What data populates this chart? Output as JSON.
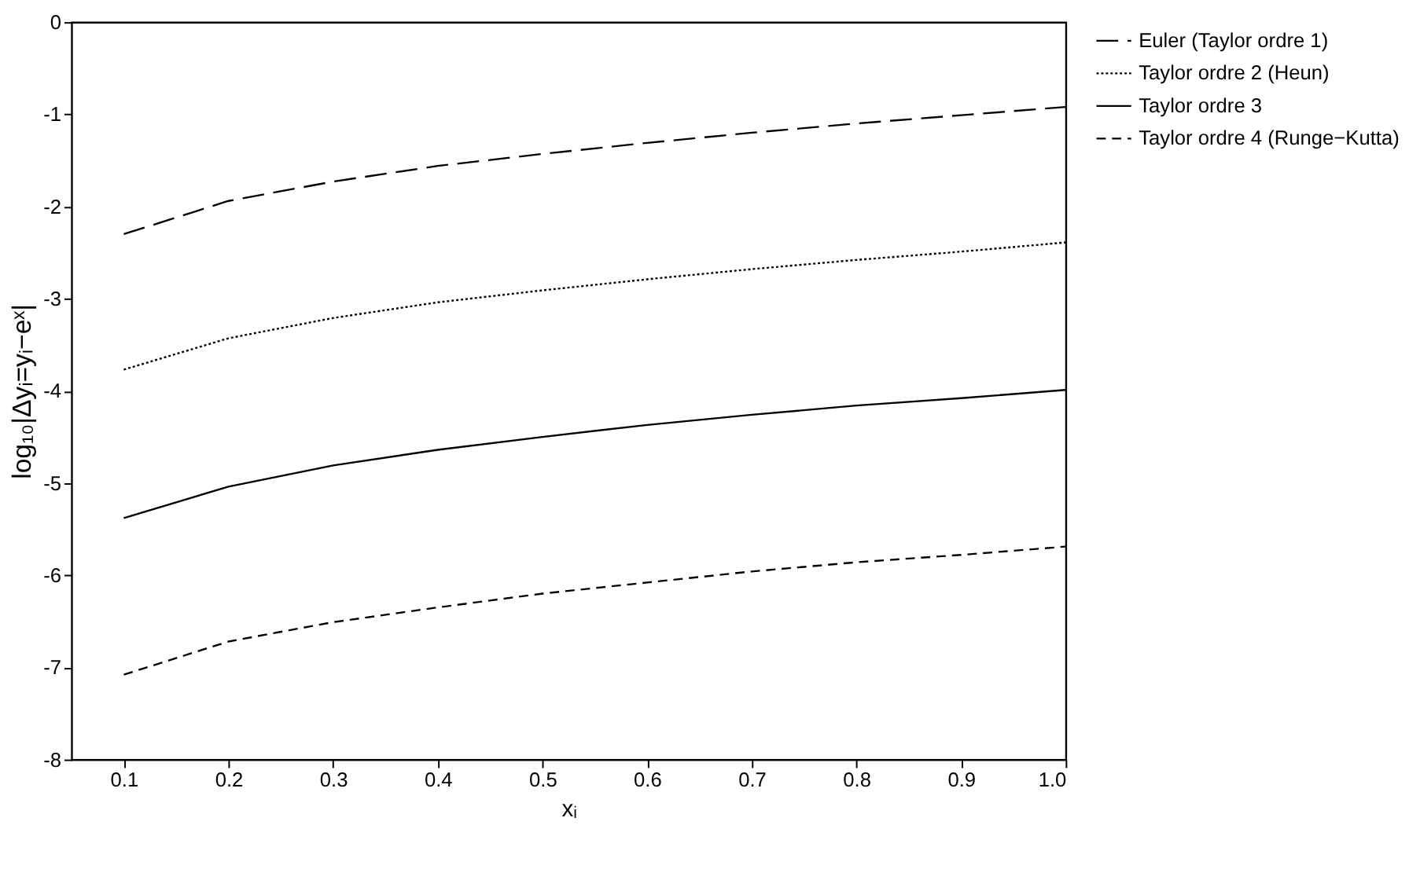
{
  "chart_data": {
    "type": "line",
    "xlabel": "xᵢ",
    "ylabel": "log₁₀|Δyᵢ=yᵢ−eˣ|",
    "x": [
      0.1,
      0.2,
      0.3,
      0.4,
      0.5,
      0.6,
      0.7,
      0.8,
      0.9,
      1.0
    ],
    "series": [
      {
        "name": "Euler (Taylor ordre 1)",
        "color": "#000000",
        "line_style": "dashed",
        "values": [
          -2.3,
          -1.94,
          -1.73,
          -1.56,
          -1.43,
          -1.31,
          -1.2,
          -1.1,
          -1.01,
          -0.92
        ]
      },
      {
        "name": "Taylor ordre 2 (Heun)",
        "color": "#000000",
        "line_style": "dotted",
        "values": [
          -3.77,
          -3.43,
          -3.21,
          -3.04,
          -2.91,
          -2.79,
          -2.68,
          -2.58,
          -2.49,
          -2.39
        ]
      },
      {
        "name": "Taylor ordre 3",
        "color": "#000000",
        "line_style": "solid",
        "values": [
          -5.38,
          -5.04,
          -4.81,
          -4.64,
          -4.5,
          -4.37,
          -4.26,
          -4.16,
          -4.08,
          -3.99
        ]
      },
      {
        "name": "Taylor ordre 4 (Runge−Kutta)",
        "color": "#000000",
        "line_style": "dashed",
        "values": [
          -7.08,
          -6.72,
          -6.51,
          -6.35,
          -6.2,
          -6.08,
          -5.96,
          -5.86,
          -5.78,
          -5.69
        ]
      }
    ],
    "xlim": [
      0.05,
      1.0
    ],
    "xticks": [
      0.1,
      0.2,
      0.3,
      0.4,
      0.5,
      0.6,
      0.7,
      0.8,
      0.9,
      {
        "value": 1.0,
        "label": "1.0"
      }
    ],
    "ylim": [
      -8,
      0
    ],
    "yticks": [
      -8,
      -7,
      -6,
      -5,
      -4,
      -3,
      -2,
      -1,
      0
    ],
    "grid": false,
    "legend": "right",
    "marker": "none"
  }
}
